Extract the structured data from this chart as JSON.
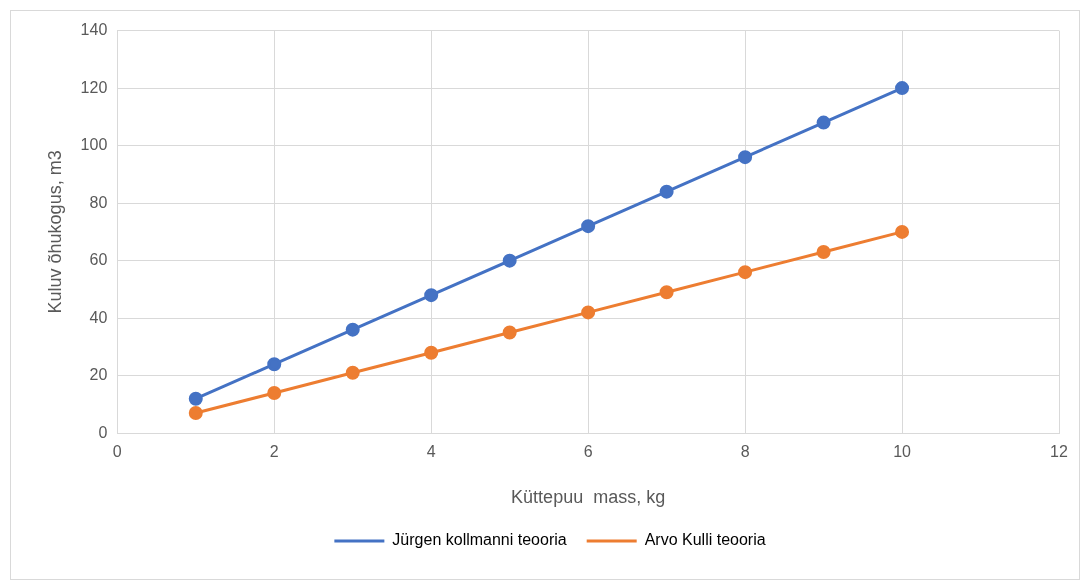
{
  "chart_data": {
    "type": "line",
    "xlabel": "Küttepuu  mass, kg",
    "ylabel": "Kuluv õhukogus, m3",
    "x": [
      1,
      2,
      3,
      4,
      5,
      6,
      7,
      8,
      9,
      10
    ],
    "series": [
      {
        "name": "Jürgen kollmanni teooria",
        "color": "#4472c4",
        "values": [
          12,
          24,
          36,
          48,
          60,
          72,
          84,
          96,
          108,
          120
        ]
      },
      {
        "name": "Arvo Kulli teooria",
        "color": "#ed7d31",
        "values": [
          7,
          14,
          21,
          28,
          35,
          42,
          49,
          56,
          63,
          70
        ]
      }
    ],
    "xlim": [
      0,
      12
    ],
    "xticks": [
      0,
      2,
      4,
      6,
      8,
      10,
      12
    ],
    "ylim": [
      0,
      140
    ],
    "yticks": [
      0,
      20,
      40,
      60,
      80,
      100,
      120,
      140
    ],
    "grid": true,
    "legend": "bottom",
    "marker": "circle",
    "line_style": "solid"
  }
}
